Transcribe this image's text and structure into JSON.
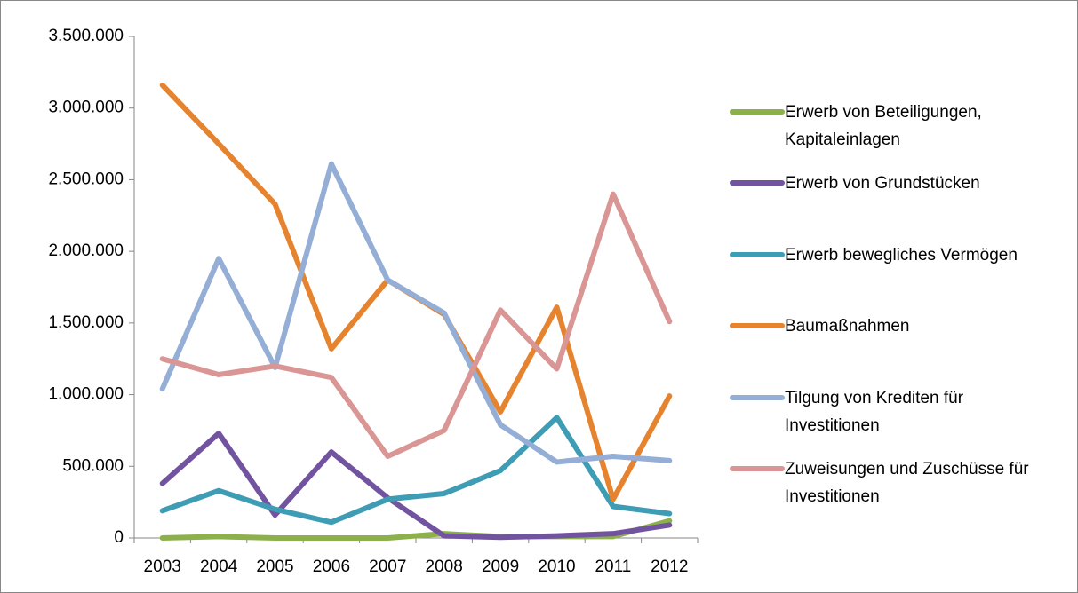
{
  "chart_data": {
    "type": "line",
    "categories": [
      "2003",
      "2004",
      "2005",
      "2006",
      "2007",
      "2008",
      "2009",
      "2010",
      "2011",
      "2012"
    ],
    "series": [
      {
        "name": "Erwerb von Beteiligungen, Kapitaleinlagen",
        "color": "#8cb04a",
        "values": [
          0,
          10000,
          0,
          0,
          0,
          30000,
          10000,
          10000,
          10000,
          120000
        ]
      },
      {
        "name": "Erwerb von Grundstücken",
        "color": "#7153a0",
        "values": [
          380000,
          730000,
          160000,
          600000,
          280000,
          15000,
          5000,
          15000,
          30000,
          90000
        ]
      },
      {
        "name": "Erwerb bewegliches Vermögen",
        "color": "#3e9cb5",
        "values": [
          190000,
          330000,
          200000,
          110000,
          270000,
          310000,
          470000,
          840000,
          220000,
          170000
        ]
      },
      {
        "name": "Baumaßnahmen",
        "color": "#e6832e",
        "values": [
          3160000,
          2750000,
          2330000,
          1320000,
          1800000,
          1560000,
          880000,
          1610000,
          270000,
          990000
        ]
      },
      {
        "name": "Tilgung von Krediten für Investitionen",
        "color": "#94aed6",
        "values": [
          1040000,
          1950000,
          1190000,
          2610000,
          1800000,
          1570000,
          790000,
          530000,
          570000,
          540000
        ]
      },
      {
        "name": "Zuweisungen und Zuschüsse für Investitionen",
        "color": "#d99694",
        "values": [
          1250000,
          1140000,
          1200000,
          1120000,
          570000,
          750000,
          1590000,
          1180000,
          2400000,
          1510000
        ]
      }
    ],
    "ylim": [
      0,
      3500000
    ],
    "yticks": [
      0,
      {
        "value": 500000,
        "label": "500.000"
      },
      {
        "value": 1000000,
        "label": "1.000.000"
      },
      {
        "value": 1500000,
        "label": "1.500.000"
      },
      {
        "value": 2000000,
        "label": "2.000.000"
      },
      {
        "value": 2500000,
        "label": "2.500.000"
      },
      {
        "value": 3000000,
        "label": "3.000.000"
      },
      {
        "value": 3500000,
        "label": "3.500.000"
      }
    ],
    "grid": false,
    "legend": "right"
  }
}
